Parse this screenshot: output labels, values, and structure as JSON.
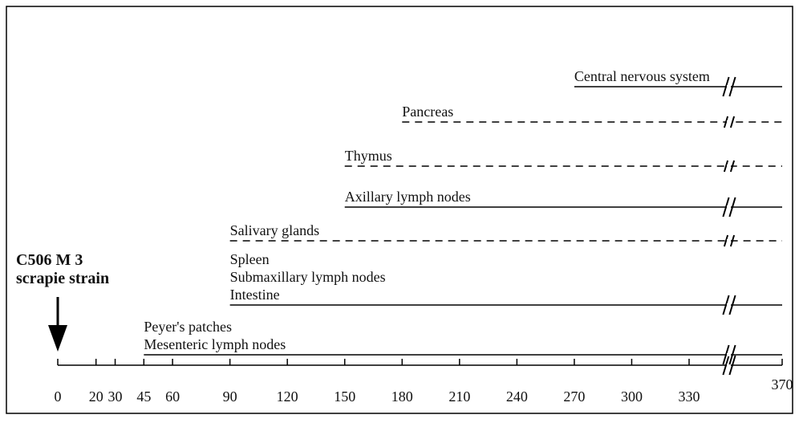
{
  "chart_data": {
    "type": "timeline",
    "title": [
      "C506 M 3",
      "scrapie strain"
    ],
    "xlim": [
      0,
      370
    ],
    "xticks": [
      0,
      20,
      30,
      45,
      60,
      90,
      120,
      150,
      180,
      210,
      240,
      270,
      300,
      330,
      370
    ],
    "series": [
      {
        "labels": [
          "Central nervous system"
        ],
        "start": 270,
        "end": 370,
        "dashed": false
      },
      {
        "labels": [
          "Pancreas"
        ],
        "start": 180,
        "end": 370,
        "dashed": true
      },
      {
        "labels": [
          "Thymus"
        ],
        "start": 150,
        "end": 370,
        "dashed": true
      },
      {
        "labels": [
          "Axillary  lymph nodes"
        ],
        "start": 150,
        "end": 370,
        "dashed": false
      },
      {
        "labels": [
          "Salivary glands"
        ],
        "start": 90,
        "end": 370,
        "dashed": true
      },
      {
        "labels": [
          "Spleen",
          "Submaxillary  lymph  nodes",
          "Intestine"
        ],
        "start": 90,
        "end": 370,
        "dashed": false
      },
      {
        "labels": [
          "Peyer's patches",
          "Mesenteric lymph nodes"
        ],
        "start": 45,
        "end": 370,
        "dashed": false
      }
    ]
  }
}
